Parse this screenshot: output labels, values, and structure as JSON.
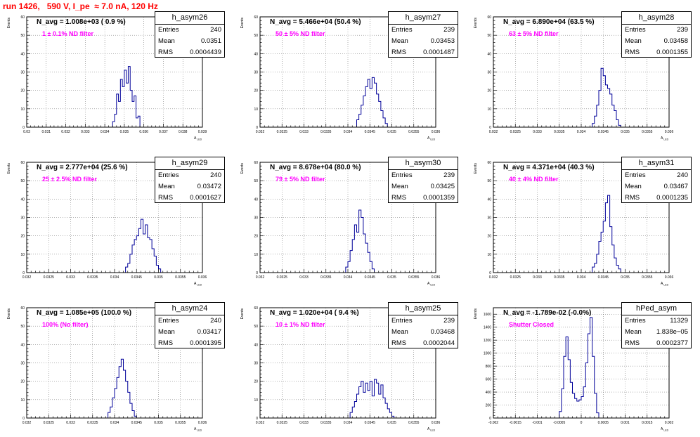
{
  "page_title": "run 1426,   590 V, I_pe  ≈ 7.0 nA, 120 Hz",
  "x_axis_label": "A",
  "x_axis_sub": "LED",
  "y_axis_label": "Events",
  "stat_labels": {
    "entries": "Entries",
    "mean": "Mean",
    "rms": "RMS"
  },
  "chart_data": [
    {
      "type": "histogram",
      "name": "h_asym26",
      "navg": "N_avg = 1.008e+03 ( 0.9 %)",
      "filter": "1 ± 0.1% ND filter",
      "stats": {
        "entries": "240",
        "mean": "0.0351",
        "rms": "0.0004439"
      },
      "xlim": [
        0.03,
        0.039
      ],
      "ylim": [
        0,
        60
      ],
      "xticks": [
        "0.03",
        "0.031",
        "0.032",
        "0.033",
        "0.034",
        "0.035",
        "0.036",
        "0.037",
        "0.038",
        "0.039"
      ],
      "yticks": [
        "0",
        "10",
        "20",
        "30",
        "40",
        "50",
        "60"
      ],
      "bins": [
        [
          0.0343,
          0.0344,
          0
        ],
        [
          0.0344,
          0.0345,
          3
        ],
        [
          0.0345,
          0.0346,
          7
        ],
        [
          0.0346,
          0.0347,
          18
        ],
        [
          0.0347,
          0.0348,
          14
        ],
        [
          0.0348,
          0.0349,
          26
        ],
        [
          0.0349,
          0.035,
          22
        ],
        [
          0.035,
          0.0351,
          31
        ],
        [
          0.0351,
          0.0352,
          24
        ],
        [
          0.0352,
          0.0353,
          33
        ],
        [
          0.0353,
          0.0354,
          20
        ],
        [
          0.0354,
          0.0355,
          14
        ],
        [
          0.0355,
          0.0356,
          17
        ],
        [
          0.0356,
          0.0357,
          5
        ],
        [
          0.0357,
          0.0358,
          6
        ],
        [
          0.0358,
          0.0359,
          0
        ]
      ]
    },
    {
      "type": "histogram",
      "name": "h_asym27",
      "navg": "N_avg = 5.466e+04 (50.4 %)",
      "filter": "50 ± 5% ND filter",
      "stats": {
        "entries": "239",
        "mean": "0.03453",
        "rms": "0.0001487"
      },
      "xlim": [
        0.032,
        0.036
      ],
      "ylim": [
        0,
        60
      ],
      "xticks": [
        "0.032",
        "0.0325",
        "0.033",
        "0.0335",
        "0.034",
        "0.0345",
        "0.035",
        "0.0355",
        "0.036"
      ],
      "yticks": [
        "0",
        "10",
        "20",
        "30",
        "40",
        "50",
        "60"
      ],
      "bins": [
        [
          0.03415,
          0.0342,
          0
        ],
        [
          0.0342,
          0.03425,
          4
        ],
        [
          0.03425,
          0.0343,
          7
        ],
        [
          0.0343,
          0.03435,
          12
        ],
        [
          0.03435,
          0.0344,
          17
        ],
        [
          0.0344,
          0.03445,
          22
        ],
        [
          0.03445,
          0.0345,
          26
        ],
        [
          0.0345,
          0.03455,
          21
        ],
        [
          0.03455,
          0.0346,
          27
        ],
        [
          0.0346,
          0.03465,
          24
        ],
        [
          0.03465,
          0.0347,
          18
        ],
        [
          0.0347,
          0.03475,
          14
        ],
        [
          0.03475,
          0.0348,
          9
        ],
        [
          0.0348,
          0.03485,
          5
        ],
        [
          0.03485,
          0.0349,
          2
        ],
        [
          0.0349,
          0.03495,
          0
        ]
      ]
    },
    {
      "type": "histogram",
      "name": "h_asym28",
      "navg": "N_avg = 6.890e+04 (63.5 %)",
      "filter": "63 ± 5% ND filter",
      "stats": {
        "entries": "239",
        "mean": "0.03458",
        "rms": "0.0001355"
      },
      "xlim": [
        0.032,
        0.036
      ],
      "ylim": [
        0,
        60
      ],
      "xticks": [
        "0.032",
        "0.0325",
        "0.033",
        "0.0335",
        "0.034",
        "0.0345",
        "0.035",
        "0.0355",
        "0.036"
      ],
      "yticks": [
        "0",
        "10",
        "20",
        "30",
        "40",
        "50",
        "60"
      ],
      "bins": [
        [
          0.0342,
          0.03425,
          0
        ],
        [
          0.03425,
          0.0343,
          2
        ],
        [
          0.0343,
          0.03435,
          6
        ],
        [
          0.03435,
          0.0344,
          12
        ],
        [
          0.0344,
          0.03445,
          20
        ],
        [
          0.03445,
          0.0345,
          32
        ],
        [
          0.0345,
          0.03455,
          28
        ],
        [
          0.03455,
          0.0346,
          23
        ],
        [
          0.0346,
          0.03465,
          21
        ],
        [
          0.03465,
          0.0347,
          18
        ],
        [
          0.0347,
          0.03475,
          12
        ],
        [
          0.03475,
          0.0348,
          9
        ],
        [
          0.0348,
          0.03485,
          4
        ],
        [
          0.03485,
          0.0349,
          1
        ],
        [
          0.0349,
          0.03495,
          0
        ]
      ]
    },
    {
      "type": "histogram",
      "name": "h_asym29",
      "navg": "N_avg = 2.777e+04 (25.6 %)",
      "filter": "25 ± 2.5% ND filter",
      "stats": {
        "entries": "240",
        "mean": "0.03472",
        "rms": "0.0001627"
      },
      "xlim": [
        0.032,
        0.036
      ],
      "ylim": [
        0,
        60
      ],
      "xticks": [
        "0.032",
        "0.0325",
        "0.033",
        "0.0335",
        "0.034",
        "0.0345",
        "0.035",
        "0.0355",
        "0.036"
      ],
      "yticks": [
        "0",
        "10",
        "20",
        "30",
        "40",
        "50",
        "60"
      ],
      "bins": [
        [
          0.0342,
          0.03425,
          0
        ],
        [
          0.03425,
          0.0343,
          3
        ],
        [
          0.0343,
          0.03435,
          5
        ],
        [
          0.03435,
          0.0344,
          10
        ],
        [
          0.0344,
          0.03445,
          15
        ],
        [
          0.03445,
          0.0345,
          18
        ],
        [
          0.0345,
          0.03455,
          20
        ],
        [
          0.03455,
          0.0346,
          24
        ],
        [
          0.0346,
          0.03465,
          29
        ],
        [
          0.03465,
          0.0347,
          21
        ],
        [
          0.0347,
          0.03475,
          26
        ],
        [
          0.03475,
          0.0348,
          19
        ],
        [
          0.0348,
          0.03485,
          18
        ],
        [
          0.03485,
          0.0349,
          13
        ],
        [
          0.0349,
          0.03495,
          9
        ],
        [
          0.03495,
          0.035,
          4
        ],
        [
          0.035,
          0.03505,
          2
        ],
        [
          0.03505,
          0.0351,
          0
        ]
      ]
    },
    {
      "type": "histogram",
      "name": "h_asym30",
      "navg": "N_avg = 8.678e+04 (80.0 %)",
      "filter": "79 ± 5% ND filter",
      "stats": {
        "entries": "239",
        "mean": "0.03425",
        "rms": "0.0001359"
      },
      "xlim": [
        0.032,
        0.036
      ],
      "ylim": [
        0,
        60
      ],
      "xticks": [
        "0.032",
        "0.0325",
        "0.033",
        "0.0335",
        "0.034",
        "0.0345",
        "0.035",
        "0.0355",
        "0.036"
      ],
      "yticks": [
        "0",
        "10",
        "20",
        "30",
        "40",
        "50",
        "60"
      ],
      "bins": [
        [
          0.0339,
          0.03395,
          0
        ],
        [
          0.03395,
          0.034,
          3
        ],
        [
          0.034,
          0.03405,
          6
        ],
        [
          0.03405,
          0.0341,
          12
        ],
        [
          0.0341,
          0.03415,
          18
        ],
        [
          0.03415,
          0.0342,
          26
        ],
        [
          0.0342,
          0.03425,
          22
        ],
        [
          0.03425,
          0.0343,
          34
        ],
        [
          0.0343,
          0.03435,
          30
        ],
        [
          0.03435,
          0.0344,
          21
        ],
        [
          0.0344,
          0.03445,
          16
        ],
        [
          0.03445,
          0.0345,
          11
        ],
        [
          0.0345,
          0.03455,
          6
        ],
        [
          0.03455,
          0.0346,
          2
        ],
        [
          0.0346,
          0.03465,
          0
        ]
      ]
    },
    {
      "type": "histogram",
      "name": "h_asym31",
      "navg": "N_avg = 4.371e+04 (40.3 %)",
      "filter": "40 ± 4% ND filter",
      "stats": {
        "entries": "240",
        "mean": "0.03467",
        "rms": "0.0001235"
      },
      "xlim": [
        0.032,
        0.036
      ],
      "ylim": [
        0,
        60
      ],
      "xticks": [
        "0.032",
        "0.0325",
        "0.033",
        "0.0335",
        "0.034",
        "0.0345",
        "0.035",
        "0.0355",
        "0.036"
      ],
      "yticks": [
        "0",
        "10",
        "20",
        "30",
        "40",
        "50",
        "60"
      ],
      "bins": [
        [
          0.0342,
          0.03425,
          0
        ],
        [
          0.03425,
          0.0343,
          3
        ],
        [
          0.0343,
          0.03435,
          5
        ],
        [
          0.03435,
          0.0344,
          10
        ],
        [
          0.0344,
          0.03445,
          17
        ],
        [
          0.03445,
          0.0345,
          22
        ],
        [
          0.0345,
          0.03455,
          28
        ],
        [
          0.03455,
          0.0346,
          38
        ],
        [
          0.0346,
          0.03465,
          42
        ],
        [
          0.03465,
          0.0347,
          25
        ],
        [
          0.0347,
          0.03475,
          15
        ],
        [
          0.03475,
          0.0348,
          8
        ],
        [
          0.0348,
          0.03485,
          4
        ],
        [
          0.03485,
          0.0349,
          2
        ],
        [
          0.0349,
          0.03495,
          0
        ]
      ]
    },
    {
      "type": "histogram",
      "name": "h_asym24",
      "navg": "N_avg = 1.085e+05 (100.0 %)",
      "filter": "100% (No filter)",
      "stats": {
        "entries": "240",
        "mean": "0.03417",
        "rms": "0.0001395"
      },
      "xlim": [
        0.032,
        0.036
      ],
      "ylim": [
        0,
        60
      ],
      "xticks": [
        "0.032",
        "0.0325",
        "0.033",
        "0.0335",
        "0.034",
        "0.0345",
        "0.035",
        "0.0355",
        "0.036"
      ],
      "yticks": [
        "0",
        "10",
        "20",
        "30",
        "40",
        "50",
        "60"
      ],
      "bins": [
        [
          0.0338,
          0.03385,
          0
        ],
        [
          0.03385,
          0.0339,
          3
        ],
        [
          0.0339,
          0.03395,
          6
        ],
        [
          0.03395,
          0.034,
          11
        ],
        [
          0.034,
          0.03405,
          16
        ],
        [
          0.03405,
          0.0341,
          22
        ],
        [
          0.0341,
          0.03415,
          28
        ],
        [
          0.03415,
          0.0342,
          32
        ],
        [
          0.0342,
          0.03425,
          26
        ],
        [
          0.03425,
          0.0343,
          20
        ],
        [
          0.0343,
          0.03435,
          14
        ],
        [
          0.03435,
          0.0344,
          8
        ],
        [
          0.0344,
          0.03445,
          4
        ],
        [
          0.03445,
          0.0345,
          1
        ],
        [
          0.0345,
          0.03455,
          0
        ]
      ]
    },
    {
      "type": "histogram",
      "name": "h_asym25",
      "navg": "N_avg = 1.020e+04 ( 9.4 %)",
      "filter": "10 ± 1% ND filter",
      "stats": {
        "entries": "239",
        "mean": "0.03468",
        "rms": "0.0002044"
      },
      "xlim": [
        0.032,
        0.036
      ],
      "ylim": [
        0,
        60
      ],
      "xticks": [
        "0.032",
        "0.0325",
        "0.033",
        "0.0335",
        "0.034",
        "0.0345",
        "0.035",
        "0.0355",
        "0.036"
      ],
      "yticks": [
        "0",
        "10",
        "20",
        "30",
        "40",
        "50",
        "60"
      ],
      "bins": [
        [
          0.034,
          0.03405,
          0
        ],
        [
          0.03405,
          0.0341,
          3
        ],
        [
          0.0341,
          0.03415,
          6
        ],
        [
          0.03415,
          0.0342,
          9
        ],
        [
          0.0342,
          0.03425,
          13
        ],
        [
          0.03425,
          0.0343,
          17
        ],
        [
          0.0343,
          0.03435,
          20
        ],
        [
          0.03435,
          0.0344,
          14
        ],
        [
          0.0344,
          0.03445,
          19
        ],
        [
          0.03445,
          0.0345,
          15
        ],
        [
          0.0345,
          0.03455,
          20
        ],
        [
          0.03455,
          0.0346,
          12
        ],
        [
          0.0346,
          0.03465,
          21
        ],
        [
          0.03465,
          0.0347,
          19
        ],
        [
          0.0347,
          0.03475,
          13
        ],
        [
          0.03475,
          0.0348,
          18
        ],
        [
          0.0348,
          0.03485,
          11
        ],
        [
          0.03485,
          0.0349,
          8
        ],
        [
          0.0349,
          0.03495,
          5
        ],
        [
          0.03495,
          0.035,
          3
        ],
        [
          0.035,
          0.03505,
          1
        ],
        [
          0.03505,
          0.0351,
          0
        ]
      ]
    },
    {
      "type": "histogram",
      "name": "hPed_asym",
      "navg": "N_avg = -1.789e-02 (-0.0%)",
      "filter": "Shutter Closed",
      "stats": {
        "entries": "11329",
        "mean": "1.838e−05",
        "rms": "0.0002377"
      },
      "xlim": [
        -0.002,
        0.002
      ],
      "ylim": [
        0,
        1700
      ],
      "xticks": [
        "-0.002",
        "-0.0015",
        "-0.001",
        "-0.0005",
        "0",
        "0.0005",
        "0.001",
        "0.0015",
        "0.002"
      ],
      "yticks": [
        "0",
        "200",
        "400",
        "600",
        "800",
        "1000",
        "1200",
        "1400",
        "1600"
      ],
      "bins": [
        [
          -0.00055,
          -0.0005,
          0
        ],
        [
          -0.0005,
          -0.00045,
          100
        ],
        [
          -0.00045,
          -0.0004,
          450
        ],
        [
          -0.0004,
          -0.00035,
          950
        ],
        [
          -0.00035,
          -0.0003,
          1250
        ],
        [
          -0.0003,
          -0.00025,
          900
        ],
        [
          -0.00025,
          -0.0002,
          550
        ],
        [
          -0.0002,
          -0.00015,
          380
        ],
        [
          -0.00015,
          -0.0001,
          300
        ],
        [
          -0.0001,
          -5e-05,
          260
        ],
        [
          -5e-05,
          0,
          280
        ],
        [
          0,
          5e-05,
          330
        ],
        [
          5e-05,
          0.0001,
          480
        ],
        [
          0.0001,
          0.00015,
          850
        ],
        [
          0.00015,
          0.0002,
          1300
        ],
        [
          0.0002,
          0.00025,
          1550
        ],
        [
          0.00025,
          0.0003,
          950
        ],
        [
          0.0003,
          0.00035,
          380
        ],
        [
          0.00035,
          0.0004,
          80
        ],
        [
          0.0004,
          0.00045,
          0
        ]
      ]
    }
  ]
}
